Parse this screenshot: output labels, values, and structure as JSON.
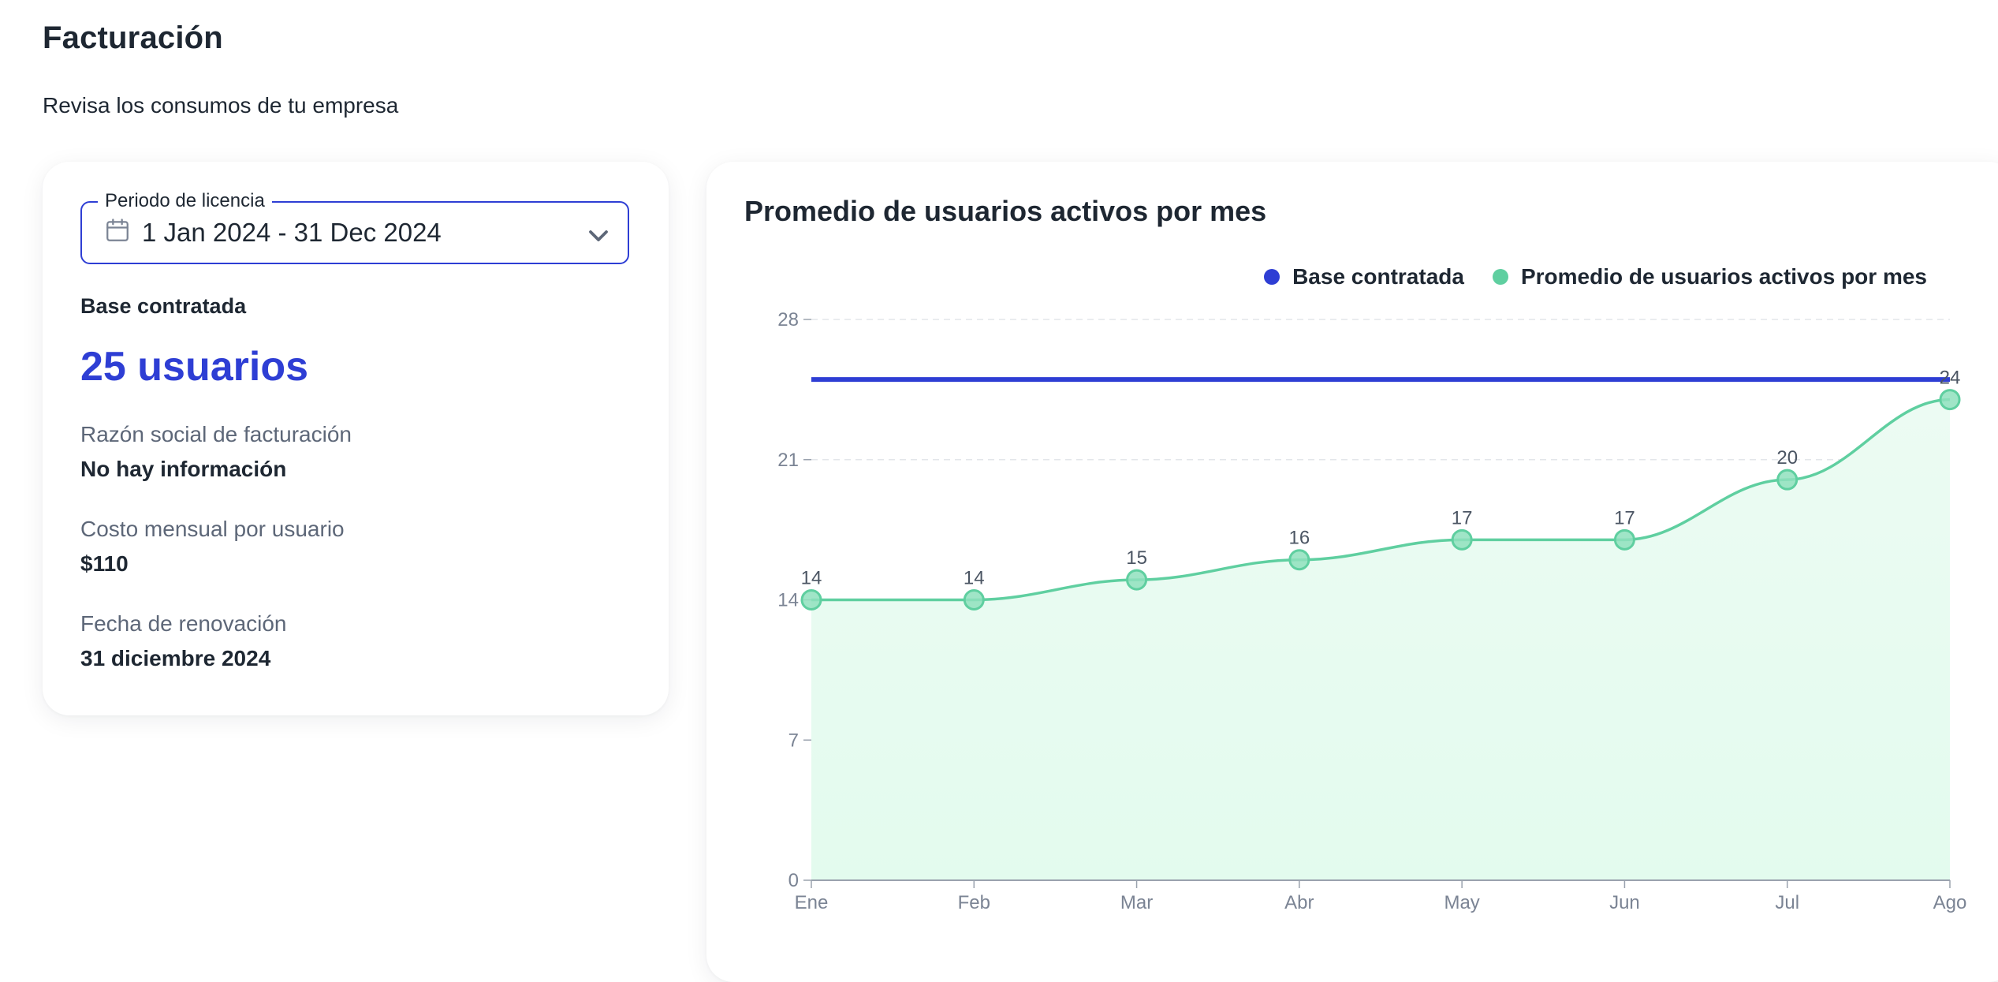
{
  "page": {
    "title": "Facturación",
    "subtitle": "Revisa los consumos de tu empresa"
  },
  "license": {
    "period_label": "Periodo de licencia",
    "period_value": "1 Jan 2024 - 31 Dec 2024",
    "period_icon": "calendar-icon",
    "dropdown_icon": "chevron-down-icon",
    "base_label": "Base contratada",
    "base_value": "25 usuarios",
    "billing_name_label": "Razón social de facturación",
    "billing_name_value": "No hay información",
    "monthly_cost_label": "Costo mensual por usuario",
    "monthly_cost_value": "$110",
    "renewal_label": "Fecha de renovación",
    "renewal_value": "31 diciembre 2024"
  },
  "colors": {
    "accent": "#2e3ed4",
    "series_active": "#5fcfa0",
    "area_fill": "#e3fbee",
    "text_dark": "#1e2732",
    "text_muted": "#5d6778"
  },
  "chart_data": {
    "type": "area",
    "title": "Promedio de usuarios activos por mes",
    "categories": [
      "Ene",
      "Feb",
      "Mar",
      "Abr",
      "May",
      "Jun",
      "Jul",
      "Ago"
    ],
    "y_ticks": [
      "0",
      "7",
      "14",
      "21",
      "28"
    ],
    "ylim": [
      0,
      28
    ],
    "grid": "horizontal dashed",
    "legend_position": "top-right",
    "series": [
      {
        "name": "Base contratada",
        "type": "line",
        "color": "#2e3ed4",
        "values": [
          25,
          25,
          25,
          25,
          25,
          25,
          25,
          25
        ]
      },
      {
        "name": "Promedio de usuarios activos por mes",
        "type": "area",
        "color": "#5fcfa0",
        "values": [
          14,
          14,
          15,
          16,
          17,
          17,
          20,
          24
        ],
        "data_labels": [
          "14",
          "14",
          "15",
          "16",
          "17",
          "17",
          "20",
          "24"
        ]
      }
    ]
  }
}
